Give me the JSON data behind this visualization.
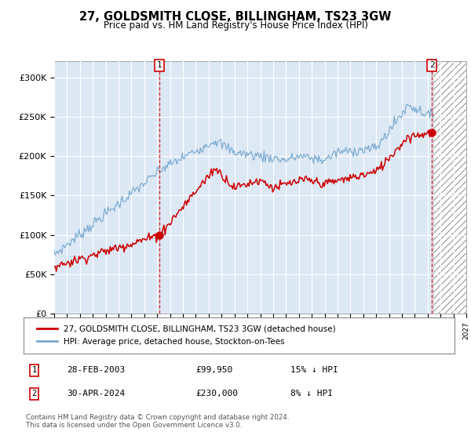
{
  "title": "27, GOLDSMITH CLOSE, BILLINGHAM, TS23 3GW",
  "subtitle": "Price paid vs. HM Land Registry's House Price Index (HPI)",
  "legend_label_red": "27, GOLDSMITH CLOSE, BILLINGHAM, TS23 3GW (detached house)",
  "legend_label_blue": "HPI: Average price, detached house, Stockton-on-Tees",
  "transaction1": {
    "label": "1",
    "date": "28-FEB-2003",
    "price": 99950,
    "note": "15% ↓ HPI"
  },
  "transaction2": {
    "label": "2",
    "date": "30-APR-2024",
    "price": 230000,
    "note": "8% ↓ HPI"
  },
  "footer": "Contains HM Land Registry data © Crown copyright and database right 2024.\nThis data is licensed under the Open Government Licence v3.0.",
  "ylim": [
    0,
    320000
  ],
  "yticks": [
    0,
    50000,
    100000,
    150000,
    200000,
    250000,
    300000
  ],
  "ytick_labels": [
    "£0",
    "£50K",
    "£100K",
    "£150K",
    "£200K",
    "£250K",
    "£300K"
  ],
  "background_color": "#dde8f5",
  "hatch_color": "#aaaaaa",
  "red_color": "#cc0000",
  "blue_color": "#7aaad0",
  "vline_color": "#cc0000",
  "box_color": "#cc0000",
  "grid_color": "#ffffff",
  "future_start": 2024.42,
  "xlim_start": 1995,
  "xlim_end": 2027
}
